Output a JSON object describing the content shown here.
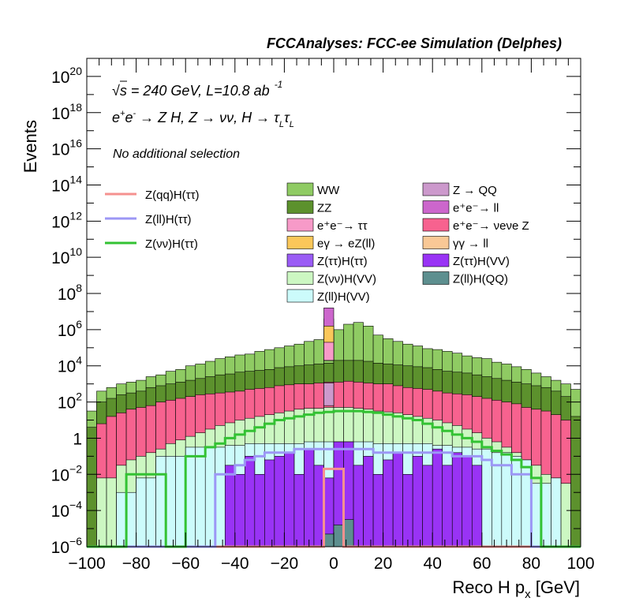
{
  "chart_data": {
    "type": "area",
    "title": "FCCAnalyses: FCC-ee Simulation (Delphes)",
    "xlabel": "Reco H p_x [GeV]",
    "ylabel": "Events",
    "log_y": true,
    "xlim": [
      -100,
      100
    ],
    "ylim": [
      1e-06,
      1e+21
    ],
    "x_ticks": [
      -100,
      -80,
      -60,
      -40,
      -20,
      0,
      20,
      40,
      60,
      80,
      100
    ],
    "x_tick_labels": [
      "−100",
      "−80",
      "−60",
      "−40",
      "−20",
      "0",
      "20",
      "40",
      "60",
      "80",
      "100"
    ],
    "y_ticks": [
      1e-06,
      0.0001,
      0.01,
      1,
      100.0,
      10000.0,
      1000000.0,
      100000000.0,
      10000000000.0,
      1000000000000.0,
      100000000000000.0,
      1e+16,
      1e+18,
      1e+20
    ],
    "y_tick_exponents": [
      -6,
      -4,
      -2,
      null,
      2,
      4,
      6,
      8,
      10,
      12,
      14,
      16,
      18,
      20
    ],
    "annotations": {
      "energy": "√s = 240 GeV, L=10.8 ab",
      "energy_sup": "-1",
      "process": "e⁺e⁻ → Z H, Z → νν, H → τLτL",
      "selection": "No additional selection"
    },
    "signal_legend": [
      {
        "name": "Z(qq)H(ττ)",
        "color": "#f5918f"
      },
      {
        "name": "Z(ll)H(ττ)",
        "color": "#9c97f5"
      },
      {
        "name": "Z(νν)H(ττ)",
        "color": "#33c233"
      }
    ],
    "background_legend": [
      {
        "name": "WW",
        "color": "#8fcb63"
      },
      {
        "name": "Z → QQ",
        "color": "#cc99cc"
      },
      {
        "name": "ZZ",
        "color": "#5c912d"
      },
      {
        "name": "e⁺e⁻→ ll",
        "color": "#cc66cc"
      },
      {
        "name": "e⁺e⁻→ ττ",
        "color": "#f79ac8"
      },
      {
        "name": "e⁺e⁻→ νeνe Z",
        "color": "#f7628f"
      },
      {
        "name": "eγ → eZ(ll)",
        "color": "#fbc75a"
      },
      {
        "name": "γγ → ll",
        "color": "#f9c896"
      },
      {
        "name": "Z(ττ)H(ττ)",
        "color": "#9a5cf5"
      },
      {
        "name": "Z(ττ)H(VV)",
        "color": "#9933f5"
      },
      {
        "name": "Z(νν)H(VV)",
        "color": "#ccf7c2"
      },
      {
        "name": "Z(ll)H(QQ)",
        "color": "#5d8f8f"
      },
      {
        "name": "Z(ll)H(VV)",
        "color": "#ccfbfb"
      }
    ],
    "bin_width": 4,
    "stack_envelopes_log10": {
      "WW": [
        1.5,
        2.6,
        2.8,
        3.0,
        3.1,
        3.2,
        3.4,
        3.5,
        3.7,
        3.8,
        4.0,
        4.1,
        4.25,
        4.4,
        4.5,
        4.6,
        4.65,
        4.8,
        4.9,
        5.0,
        5.1,
        5.2,
        5.35,
        5.45,
        5.6,
        6.0,
        6.3,
        6.4,
        6.2,
        5.7,
        5.5,
        5.35,
        5.2,
        5.1,
        4.95,
        4.9,
        4.8,
        4.7,
        4.55,
        4.45,
        4.4,
        4.2,
        4.1,
        3.95,
        3.8,
        3.6,
        3.4,
        3.2,
        3.0,
        2.7
      ],
      "ZZ": [
        0.6,
        2.0,
        2.2,
        2.4,
        2.5,
        2.6,
        2.8,
        2.9,
        3.0,
        3.1,
        3.2,
        3.3,
        3.4,
        3.5,
        3.55,
        3.65,
        3.7,
        3.75,
        3.8,
        3.9,
        3.95,
        4.0,
        4.05,
        4.1,
        4.15,
        4.3,
        4.3,
        4.3,
        4.25,
        4.15,
        4.1,
        4.05,
        4.0,
        3.95,
        3.9,
        3.8,
        3.7,
        3.65,
        3.6,
        3.5,
        3.4,
        3.3,
        3.2,
        3.1,
        3.0,
        2.9,
        2.8,
        2.6,
        2.3,
        1.2
      ],
      "ee_nunuZ": [
        -6,
        0.8,
        1.2,
        1.4,
        1.6,
        1.7,
        1.8,
        2.0,
        2.1,
        2.2,
        2.3,
        2.4,
        2.45,
        2.5,
        2.55,
        2.6,
        2.7,
        2.75,
        2.8,
        2.9,
        2.95,
        3.0,
        3.0,
        3.05,
        3.1,
        3.1,
        3.15,
        3.1,
        3.05,
        3.0,
        3.0,
        2.9,
        2.8,
        2.75,
        2.7,
        2.6,
        2.5,
        2.45,
        2.4,
        2.3,
        2.2,
        2.1,
        2.0,
        1.9,
        1.7,
        1.6,
        1.5,
        1.3,
        1.0,
        -6
      ],
      "ZnunuH_VV": [
        -6,
        -2.2,
        -2.2,
        -1.5,
        -1.2,
        -1.0,
        -0.8,
        -0.6,
        -0.3,
        -0.1,
        0.1,
        0.3,
        0.5,
        0.7,
        0.85,
        1.0,
        1.1,
        1.2,
        1.3,
        1.4,
        1.5,
        1.6,
        1.65,
        1.65,
        1.7,
        1.7,
        1.7,
        1.65,
        1.6,
        1.5,
        1.45,
        1.4,
        1.3,
        1.2,
        1.1,
        1.0,
        0.85,
        0.7,
        0.5,
        0.3,
        0.0,
        -0.2,
        -0.5,
        -0.8,
        -1.2,
        -1.5,
        -2.0,
        -2.2,
        -2.5,
        -6
      ],
      "ZllH_VV": [
        -6,
        -6,
        -6,
        -3.0,
        -3.0,
        -2.2,
        -2.2,
        -1.0,
        -1.0,
        -1.0,
        -0.5,
        -0.5,
        -0.5,
        -0.5,
        -0.4,
        -0.4,
        -0.3,
        -0.3,
        -0.3,
        -0.3,
        -0.3,
        -0.3,
        -0.2,
        -0.2,
        -0.2,
        -0.2,
        -0.2,
        -0.2,
        -0.2,
        -0.3,
        -0.3,
        -0.3,
        -0.3,
        -0.3,
        -0.3,
        -0.4,
        -0.4,
        -0.5,
        -0.5,
        -0.6,
        -0.6,
        -0.8,
        -0.8,
        -1.0,
        -1.2,
        -2.5,
        -2.5,
        -2.2,
        -6,
        -6
      ],
      "ZtautauH_VV": [
        -6,
        -6,
        -6,
        -6,
        -6,
        -6,
        -6,
        -6,
        -6,
        -6,
        -6,
        -6,
        -6,
        -6,
        -1.5,
        -2.0,
        -1.0,
        -2.0,
        -1.2,
        -1.0,
        -0.8,
        -2.0,
        -0.6,
        -1.5,
        -2.2,
        -0.2,
        -0.2,
        -1.5,
        -1.0,
        -2.0,
        -1.2,
        -0.8,
        -2.0,
        -1.0,
        -1.5,
        -0.6,
        -1.5,
        -0.8,
        -1.0,
        -1.5,
        -6,
        -6,
        -6,
        -6,
        -6,
        -6,
        -6,
        -6,
        -6,
        -6
      ],
      "ZllH_QQ": [
        -6,
        -6,
        -6,
        -6,
        -6,
        -6,
        -6,
        -6,
        -6,
        -6,
        -6,
        -6,
        -6,
        -6,
        -6,
        -6,
        -6,
        -6,
        -6,
        -6,
        -6,
        -6,
        -6,
        -6,
        -5.3,
        -4.8,
        -4.5,
        -6,
        -6,
        -6,
        -6,
        -6,
        -6,
        -6,
        -6,
        -6,
        -6,
        -6,
        -6,
        -6,
        -6,
        -6,
        -6,
        -6,
        -6,
        -6,
        -6,
        -6,
        -6,
        -6
      ]
    },
    "central_spikes_log10": {
      "Z_QQ": 6.6,
      "ee_ll": 7.2,
      "gamma_ll": 6.0,
      "egamma_eZll": 6.2,
      "ee_tautau": 5.3
    },
    "signal_lines_log10": {
      "ZqqH_tautau": [
        -6,
        -6,
        -6,
        -6,
        -6,
        -6,
        -6,
        -6,
        -6,
        -6,
        -6,
        -6,
        -6,
        -6,
        -6,
        -6,
        -6,
        -6,
        -6,
        -6,
        -6,
        -6,
        -6,
        -6,
        -1.7,
        -1.7,
        -6,
        -6,
        -6,
        -6,
        -6,
        -6,
        -6,
        -6,
        -6,
        -6,
        -6,
        -6,
        -6,
        -6,
        -6,
        -6,
        -6,
        -6,
        -6,
        -6,
        -6,
        -6,
        -6,
        -6
      ],
      "ZllH_tautau": [
        -6,
        -6,
        -6,
        -6,
        -6,
        -6,
        -6,
        -6,
        -6,
        -6,
        -6,
        -6,
        -6,
        -2.0,
        -2.0,
        -1.5,
        -1.2,
        -1.0,
        -0.8,
        -0.8,
        -0.8,
        -0.6,
        -0.6,
        -0.6,
        -0.6,
        -0.6,
        -0.6,
        -0.6,
        -0.6,
        -0.8,
        -0.8,
        -0.8,
        -0.8,
        -0.8,
        -0.8,
        -0.8,
        -0.8,
        -1.0,
        -1.0,
        -1.0,
        -1.2,
        -1.5,
        -1.5,
        -2.0,
        -2.0,
        -6,
        -6,
        -6,
        -6,
        -6
      ],
      "ZnunuH_tautau": [
        -6,
        -6,
        -6,
        -6,
        -2.0,
        -2.0,
        -2.0,
        -2.0,
        -6,
        -6,
        -1.0,
        -1.0,
        -0.5,
        -0.3,
        0.0,
        0.2,
        0.4,
        0.6,
        0.8,
        1.0,
        1.1,
        1.2,
        1.3,
        1.4,
        1.45,
        1.5,
        1.5,
        1.5,
        1.45,
        1.4,
        1.3,
        1.2,
        1.1,
        1.0,
        0.8,
        0.6,
        0.4,
        0.2,
        0.0,
        -0.2,
        -0.5,
        -0.7,
        -0.9,
        -1.2,
        -1.6,
        -2.2,
        -6,
        -6,
        -6,
        -6
      ]
    }
  }
}
